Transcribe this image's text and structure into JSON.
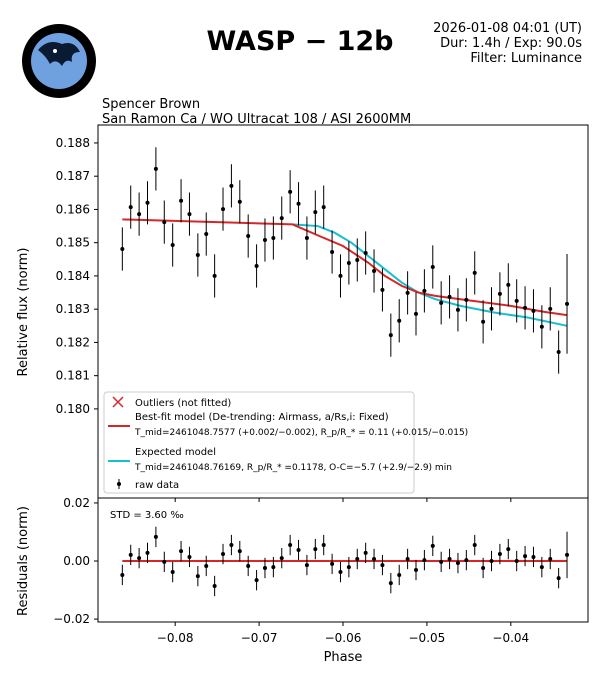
{
  "header": {
    "title": "WASP − 12b",
    "date": "2026-01-08 04:01 (UT)",
    "duration_exposure": "Dur: 1.4h / Exp: 90.0s",
    "filter": "Filter: Luminance",
    "observer": "Spencer Brown",
    "location": "San Ramon Ca / WO Ultracat 108 / ASI 2600MM",
    "logo_text_top": "EXOtic",
    "logo_text_left": "Photometric",
    "logo_text_right": "Software"
  },
  "colors": {
    "bestfit": "#d62728",
    "expected": "#17becf",
    "data": "#000000",
    "outlier": "#d62728"
  },
  "legend": {
    "placement": "lower-left",
    "outliers": "Outliers (not fitted)",
    "bestfit_line1": "Best-fit model (De-trending: Airmass, a/Rs,i: Fixed)",
    "bestfit_line2": "T_mid=2461048.7577 (+0.002/−0.002), R_p/R_* = 0.11 (+0.015/−0.015)",
    "expected_line1": "Expected model",
    "expected_line2": "T_mid=2461048.76169, R_p/R_* =0.1178, O-C=−5.7 (+2.9/−2.9) min",
    "rawdata": "raw data"
  },
  "chart_data": [
    {
      "type": "scatter",
      "ylabel": "Relative flux (norm)",
      "xlabel": "",
      "xlim": [
        -0.0892,
        -0.0308
      ],
      "ylim": [
        0.17732,
        0.18854
      ],
      "xticks": [
        -0.08,
        -0.07,
        -0.06,
        -0.05,
        -0.04
      ],
      "yticks": [
        0.18,
        0.181,
        0.182,
        0.183,
        0.184,
        0.185,
        0.186,
        0.187,
        0.188
      ],
      "ytick_labels": [
        "0.180",
        "0.181",
        "0.182",
        "0.183",
        "0.184",
        "0.185",
        "0.186",
        "0.187",
        "0.188"
      ],
      "grid": false,
      "x": [
        -0.0863,
        -0.0853,
        -0.0843,
        -0.0833,
        -0.0823,
        -0.0813,
        -0.0803,
        -0.0793,
        -0.0783,
        -0.0773,
        -0.0763,
        -0.0753,
        -0.0743,
        -0.0733,
        -0.0723,
        -0.0713,
        -0.0703,
        -0.0693,
        -0.0683,
        -0.0673,
        -0.0663,
        -0.0653,
        -0.0643,
        -0.0633,
        -0.0623,
        -0.0613,
        -0.0603,
        -0.0593,
        -0.0583,
        -0.0573,
        -0.0563,
        -0.0553,
        -0.0543,
        -0.0533,
        -0.0523,
        -0.0513,
        -0.0503,
        -0.0493,
        -0.0483,
        -0.0473,
        -0.0463,
        -0.0453,
        -0.0443,
        -0.0433,
        -0.0423,
        -0.0413,
        -0.0403,
        -0.0393,
        -0.0383,
        -0.0373,
        -0.0363,
        -0.0353,
        -0.0343,
        -0.0333
      ],
      "y": [
        0.18481,
        0.18607,
        0.18586,
        0.1862,
        0.18722,
        0.18562,
        0.18493,
        0.18626,
        0.18586,
        0.18463,
        0.18526,
        0.184,
        0.18601,
        0.18671,
        0.18623,
        0.1852,
        0.1843,
        0.18508,
        0.18514,
        0.18574,
        0.18653,
        0.18617,
        0.18514,
        0.18592,
        0.18607,
        0.18472,
        0.184,
        0.18439,
        0.18448,
        0.18469,
        0.18415,
        0.18358,
        0.18222,
        0.18265,
        0.18349,
        0.18286,
        0.18355,
        0.18427,
        0.18319,
        0.18337,
        0.18298,
        0.18328,
        0.18409,
        0.18262,
        0.18301,
        0.18346,
        0.18373,
        0.18325,
        0.18304,
        0.18295,
        0.18247,
        0.18301,
        0.18171,
        0.18316
      ],
      "yerr": 0.00065,
      "yerr_last": 0.0015,
      "bestfit_model": {
        "x": [
          -0.0863,
          -0.075,
          -0.066,
          -0.063,
          -0.06,
          -0.057,
          -0.055,
          -0.053,
          -0.051,
          -0.049,
          -0.046,
          -0.04,
          -0.036,
          -0.0333
        ],
        "y": [
          0.1857,
          0.18562,
          0.18555,
          0.18522,
          0.1849,
          0.1844,
          0.184,
          0.1837,
          0.1835,
          0.1834,
          0.1833,
          0.1831,
          0.18292,
          0.18282
        ]
      },
      "expected_model": {
        "x": [
          -0.066,
          -0.063,
          -0.061,
          -0.059,
          -0.057,
          -0.055,
          -0.053,
          -0.051,
          -0.049,
          -0.046,
          -0.042,
          -0.038,
          -0.0333
        ],
        "y": [
          0.18555,
          0.1855,
          0.1853,
          0.185,
          0.1846,
          0.1842,
          0.1838,
          0.1835,
          0.1833,
          0.1831,
          0.1829,
          0.18275,
          0.1825
        ]
      }
    },
    {
      "type": "scatter",
      "ylabel": "Residuals (norm)",
      "xlabel": "Phase",
      "xlim": [
        -0.0892,
        -0.0308
      ],
      "ylim": [
        -0.021,
        0.0217
      ],
      "xticks": [
        -0.08,
        -0.07,
        -0.06,
        -0.05,
        -0.04
      ],
      "xtick_labels": [
        "−0.08",
        "−0.07",
        "−0.06",
        "−0.05",
        "−0.04"
      ],
      "yticks": [
        -0.02,
        0.0,
        0.02
      ],
      "ytick_labels": [
        "−0.02",
        "0.00",
        "0.02"
      ],
      "annotation": "STD = 3.60 ‰",
      "residuals": [
        -0.0048,
        0.0021,
        0.001,
        0.0028,
        0.0083,
        -0.0003,
        -0.0038,
        0.0034,
        0.0014,
        -0.0052,
        -0.0017,
        -0.0086,
        0.0024,
        0.0055,
        0.0034,
        -0.0017,
        -0.0066,
        -0.0024,
        -0.0021,
        0.001,
        0.0055,
        0.0038,
        -0.0014,
        0.0041,
        0.0055,
        -0.001,
        -0.0038,
        -0.0021,
        0.0007,
        0.0028,
        0.0007,
        -0.0014,
        -0.0076,
        -0.0048,
        0.0007,
        -0.0031,
        0.0003,
        0.0052,
        -0.0003,
        0.0007,
        -0.0007,
        0.0003,
        0.0055,
        -0.0024,
        0.0,
        0.0024,
        0.0041,
        0.0,
        0.0017,
        0.0014,
        -0.0021,
        0.0007,
        -0.0059,
        0.0021
      ],
      "resid_err": 0.0035,
      "resid_err_last": 0.008
    }
  ]
}
